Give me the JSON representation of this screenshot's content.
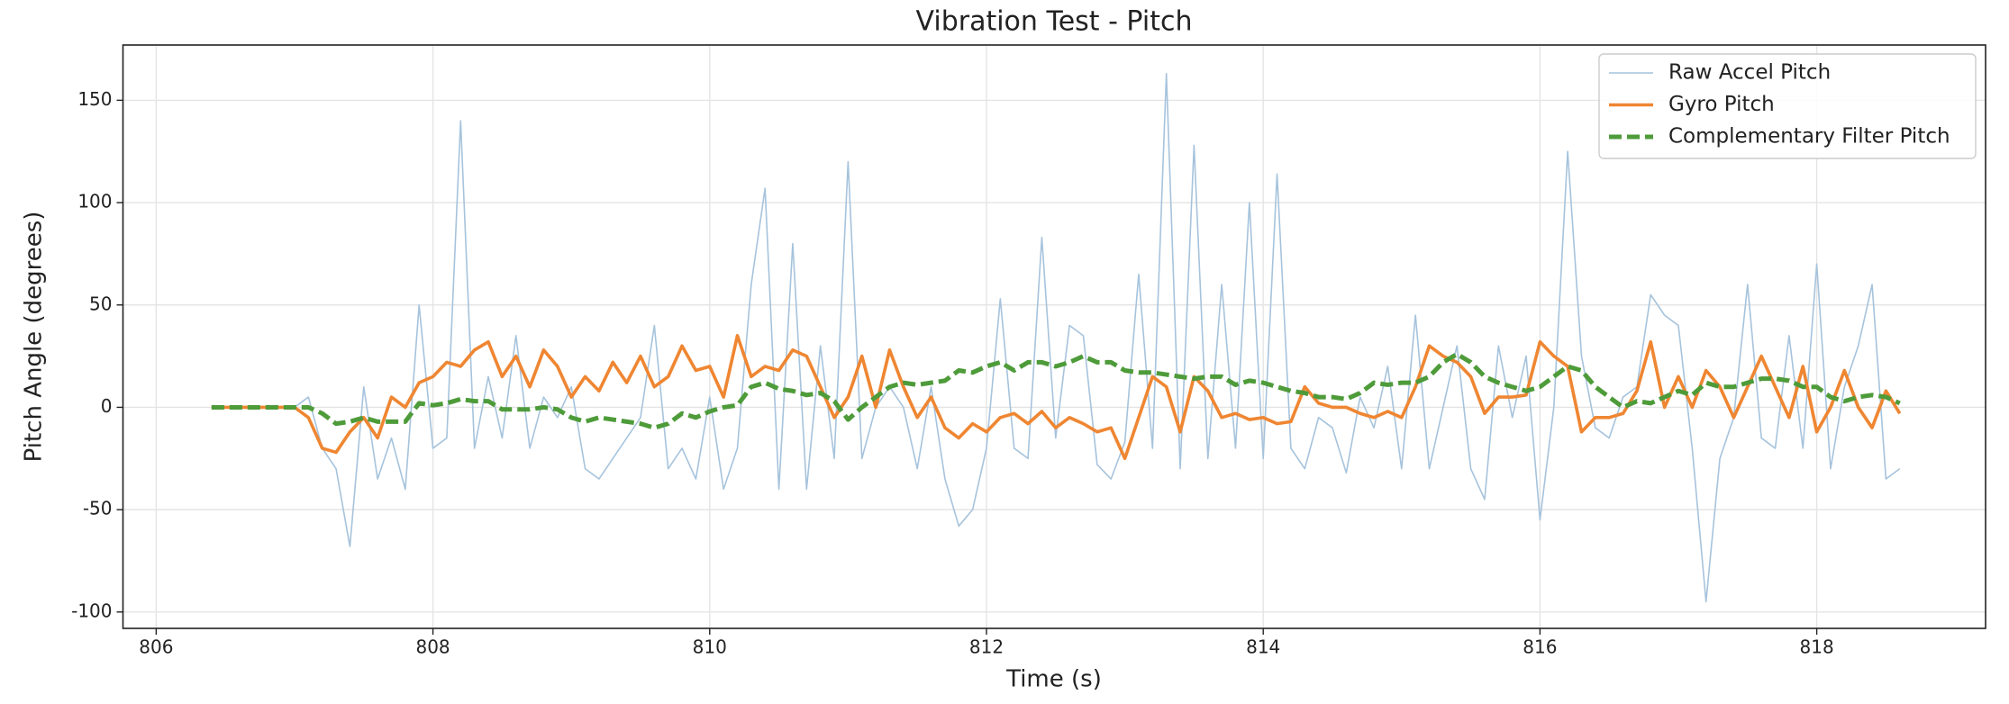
{
  "chart_data": {
    "type": "line",
    "title": "Vibration Test - Pitch",
    "x_label": "Time (s)",
    "y_label": "Pitch Angle (degrees)",
    "x": [
      806.4,
      806.5,
      806.6,
      806.7,
      806.8,
      806.9,
      807.0,
      807.1,
      807.2,
      807.3,
      807.4,
      807.5,
      807.6,
      807.7,
      807.8,
      807.9,
      808.0,
      808.1,
      808.2,
      808.3,
      808.4,
      808.5,
      808.6,
      808.7,
      808.8,
      808.9,
      809.0,
      809.1,
      809.2,
      809.3,
      809.4,
      809.5,
      809.6,
      809.7,
      809.8,
      809.9,
      810.0,
      810.1,
      810.2,
      810.3,
      810.4,
      810.5,
      810.6,
      810.7,
      810.8,
      810.9,
      811.0,
      811.1,
      811.2,
      811.3,
      811.4,
      811.5,
      811.6,
      811.7,
      811.8,
      811.9,
      812.0,
      812.1,
      812.2,
      812.3,
      812.4,
      812.5,
      812.6,
      812.7,
      812.8,
      812.9,
      813.0,
      813.1,
      813.2,
      813.3,
      813.4,
      813.5,
      813.6,
      813.7,
      813.8,
      813.9,
      814.0,
      814.1,
      814.2,
      814.3,
      814.4,
      814.5,
      814.6,
      814.7,
      814.8,
      814.9,
      815.0,
      815.1,
      815.2,
      815.3,
      815.4,
      815.5,
      815.6,
      815.7,
      815.8,
      815.9,
      816.0,
      816.1,
      816.2,
      816.3,
      816.4,
      816.5,
      816.6,
      816.7,
      816.8,
      816.9,
      817.0,
      817.1,
      817.2,
      817.3,
      817.4,
      817.5,
      817.6,
      817.7,
      817.8,
      817.9,
      818.0,
      818.1,
      818.2,
      818.3,
      818.4,
      818.5,
      818.6
    ],
    "series": [
      {
        "name": "Raw Accel Pitch",
        "color": "#a6c3dc",
        "width": 1.6,
        "dash": false,
        "values": [
          0,
          0,
          0,
          0,
          0,
          0,
          0,
          5,
          -20,
          -30,
          -68,
          10,
          -35,
          -15,
          -40,
          50,
          -20,
          -15,
          140,
          -20,
          15,
          -15,
          35,
          -20,
          5,
          -5,
          10,
          -30,
          -35,
          -25,
          -15,
          -5,
          40,
          -30,
          -20,
          -35,
          5,
          -40,
          -20,
          60,
          107,
          -40,
          80,
          -40,
          30,
          -25,
          120,
          -25,
          0,
          10,
          0,
          -30,
          10,
          -35,
          -58,
          -50,
          -20,
          53,
          -20,
          -25,
          83,
          -15,
          40,
          35,
          -28,
          -35,
          -17,
          65,
          -20,
          163,
          -30,
          128,
          -25,
          60,
          -20,
          100,
          -25,
          114,
          -20,
          -30,
          -5,
          -10,
          -32,
          5,
          -10,
          20,
          -30,
          45,
          -30,
          0,
          30,
          -30,
          -45,
          30,
          -5,
          25,
          -55,
          0,
          125,
          25,
          -10,
          -15,
          5,
          10,
          55,
          45,
          40,
          -20,
          -95,
          -25,
          -5,
          60,
          -15,
          -20,
          35,
          -20,
          70,
          -30,
          10,
          30,
          60,
          -35,
          -30
        ]
      },
      {
        "name": "Gyro Pitch",
        "color": "#ef8632",
        "width": 3.6,
        "dash": false,
        "values": [
          0,
          0,
          0,
          0,
          0,
          0,
          0,
          -5,
          -20,
          -22,
          -12,
          -5,
          -15,
          5,
          0,
          12,
          15,
          22,
          20,
          28,
          32,
          15,
          25,
          10,
          28,
          20,
          5,
          15,
          8,
          22,
          12,
          25,
          10,
          15,
          30,
          18,
          20,
          5,
          35,
          15,
          20,
          18,
          28,
          25,
          10,
          -5,
          5,
          25,
          0,
          28,
          10,
          -5,
          5,
          -10,
          -15,
          -8,
          -12,
          -5,
          -3,
          -8,
          -2,
          -10,
          -5,
          -8,
          -12,
          -10,
          -25,
          -5,
          15,
          10,
          -12,
          15,
          8,
          -5,
          -3,
          -6,
          -5,
          -8,
          -7,
          10,
          2,
          0,
          0,
          -3,
          -5,
          -2,
          -5,
          10,
          30,
          25,
          22,
          15,
          -3,
          5,
          5,
          6,
          32,
          25,
          20,
          -12,
          -5,
          -5,
          -3,
          8,
          32,
          0,
          15,
          0,
          18,
          10,
          -5,
          10,
          25,
          10,
          -5,
          20,
          -12,
          0,
          18,
          0,
          -10,
          8,
          -3
        ]
      },
      {
        "name": "Complementary Filter Pitch",
        "color": "#4e9b3a",
        "width": 5,
        "dash": true,
        "values": [
          0,
          0,
          0,
          0,
          0,
          0,
          0,
          0,
          -3,
          -8,
          -7,
          -5,
          -7,
          -7,
          -7,
          2,
          1,
          2,
          4,
          3,
          3,
          -1,
          -1,
          -1,
          0,
          -1,
          -5,
          -7,
          -5,
          -6,
          -7,
          -8,
          -10,
          -8,
          -3,
          -5,
          -2,
          0,
          1,
          10,
          12,
          9,
          8,
          6,
          7,
          3,
          -6,
          0,
          5,
          10,
          12,
          11,
          12,
          13,
          18,
          17,
          20,
          22,
          18,
          22,
          22,
          20,
          22,
          25,
          22,
          22,
          18,
          17,
          17,
          16,
          15,
          14,
          15,
          15,
          11,
          13,
          12,
          10,
          8,
          7,
          5,
          5,
          4,
          7,
          12,
          11,
          12,
          12,
          15,
          22,
          26,
          22,
          15,
          12,
          10,
          8,
          10,
          15,
          20,
          18,
          10,
          5,
          0,
          3,
          2,
          5,
          8,
          6,
          12,
          10,
          10,
          12,
          14,
          14,
          13,
          10,
          10,
          5,
          3,
          5,
          6,
          5,
          2
        ]
      }
    ],
    "xlim": [
      805.76,
      819.22
    ],
    "ylim": [
      -108,
      177
    ],
    "xticks": [
      806,
      808,
      810,
      812,
      814,
      816,
      818
    ],
    "yticks": [
      -100,
      -50,
      0,
      50,
      100,
      150
    ],
    "grid": true,
    "legend": "upper right"
  }
}
